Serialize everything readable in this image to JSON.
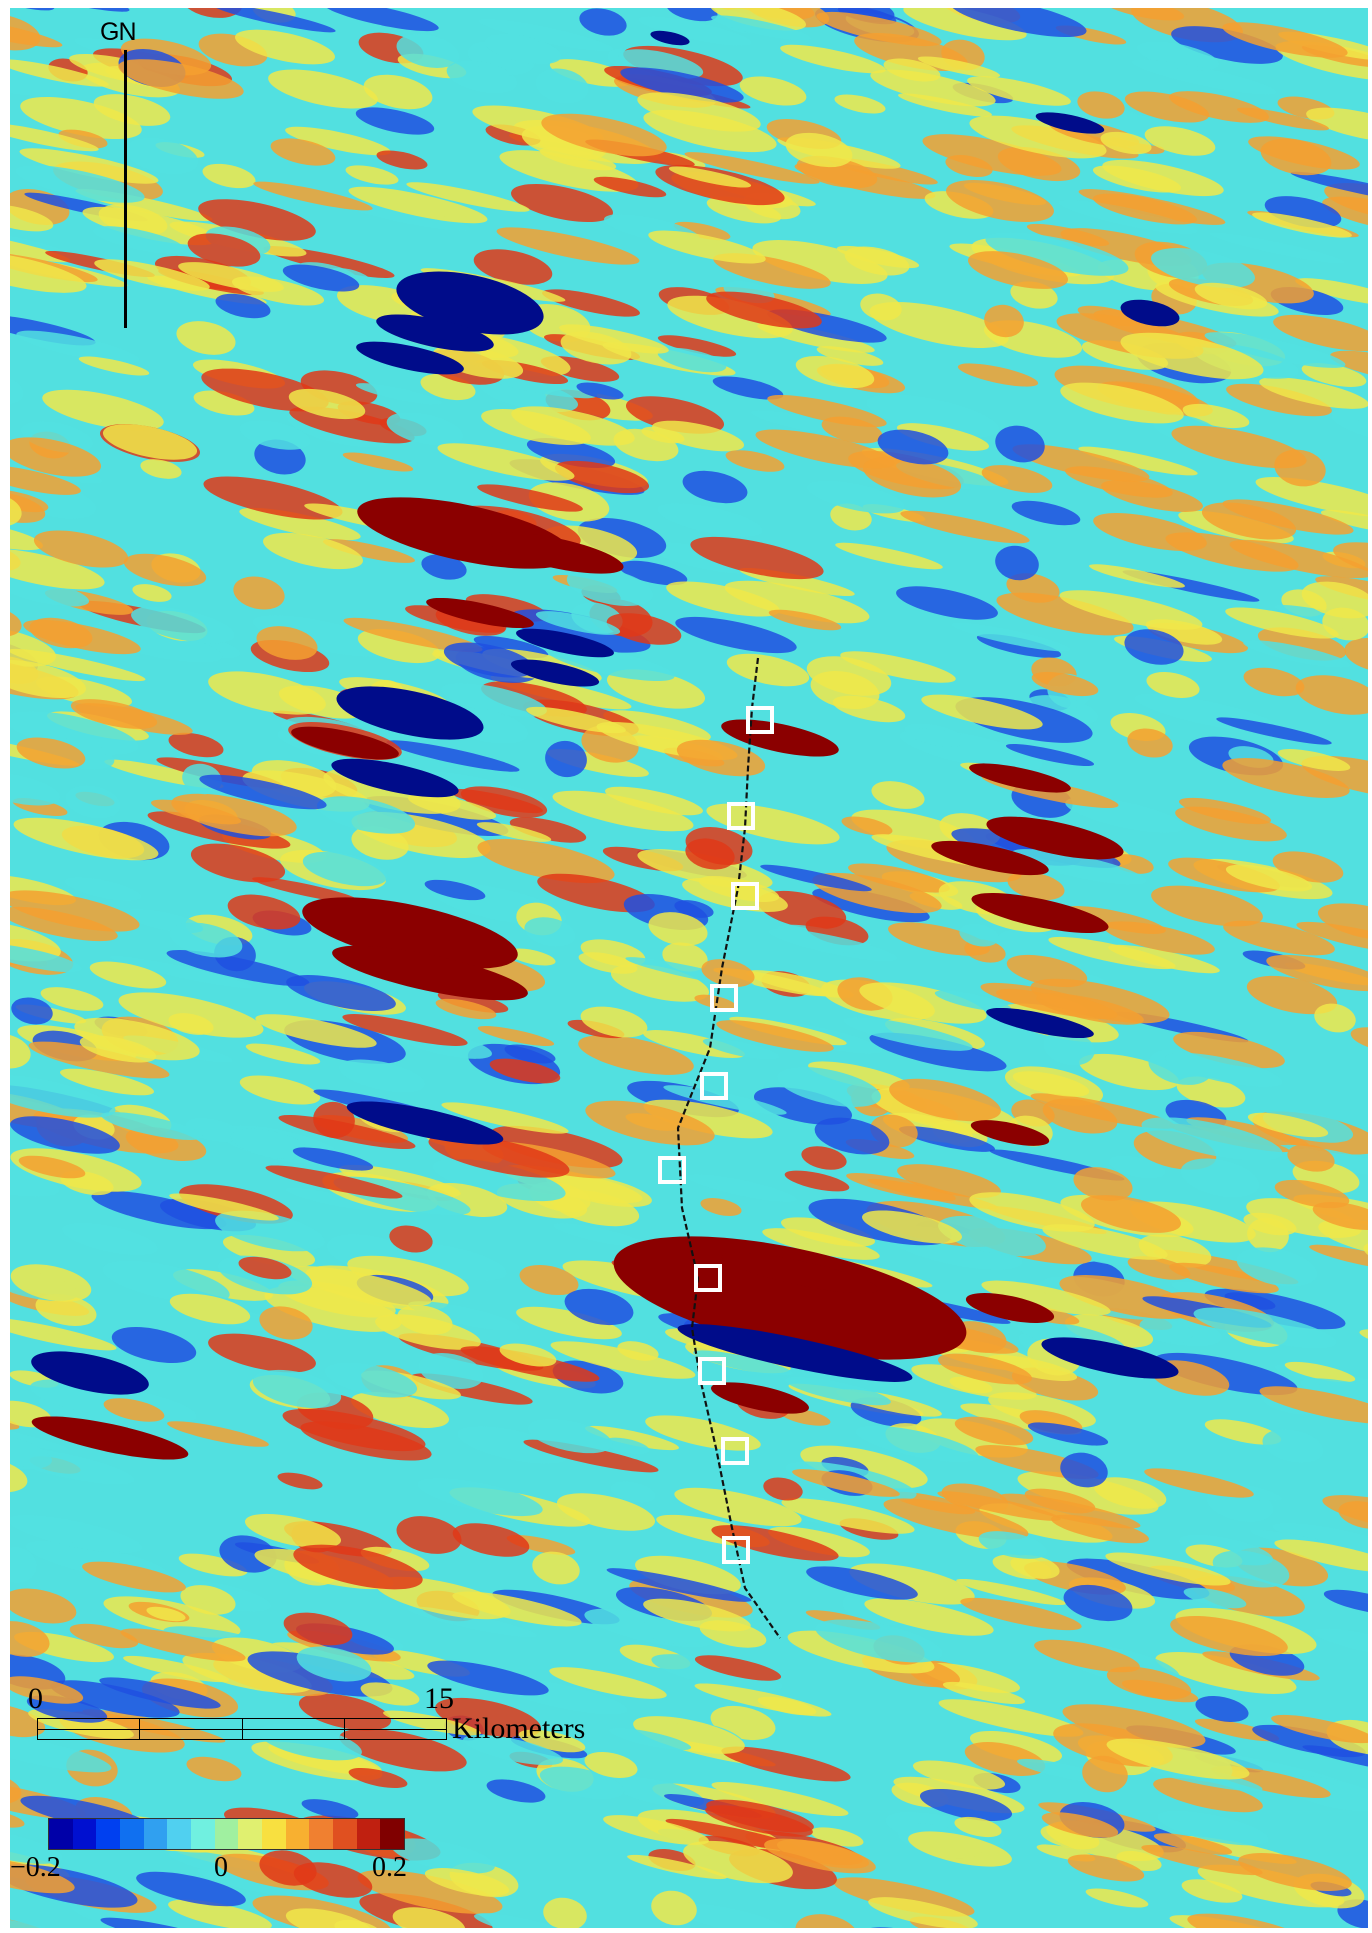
{
  "north_arrow": {
    "label": "GN"
  },
  "scale_bar": {
    "start_label": "0",
    "end_label": "15",
    "unit_label": "Kilometers",
    "segments": 4
  },
  "colorbar": {
    "min_label": "−0.2",
    "mid_label": "0",
    "max_label": "0.2",
    "colors": [
      "#0000a8",
      "#0010d0",
      "#0040f0",
      "#1070f0",
      "#30a0f0",
      "#50d0f0",
      "#70f0e0",
      "#a0f0a0",
      "#e0f070",
      "#f8e040",
      "#f8b030",
      "#f08030",
      "#e05020",
      "#c02010",
      "#800000"
    ]
  },
  "legend_colors": {
    "background_cyan": "#52e0e0",
    "yellow": "#f0e84a",
    "orange": "#f4a030",
    "red": "#e03818",
    "dark_red": "#8b0000",
    "blue": "#2050e0",
    "dark_blue": "#000c8a",
    "marker_outline": "#ffffff",
    "trace_line": "#111111"
  },
  "markers": {
    "count": 11,
    "shape": "hollow-square"
  }
}
